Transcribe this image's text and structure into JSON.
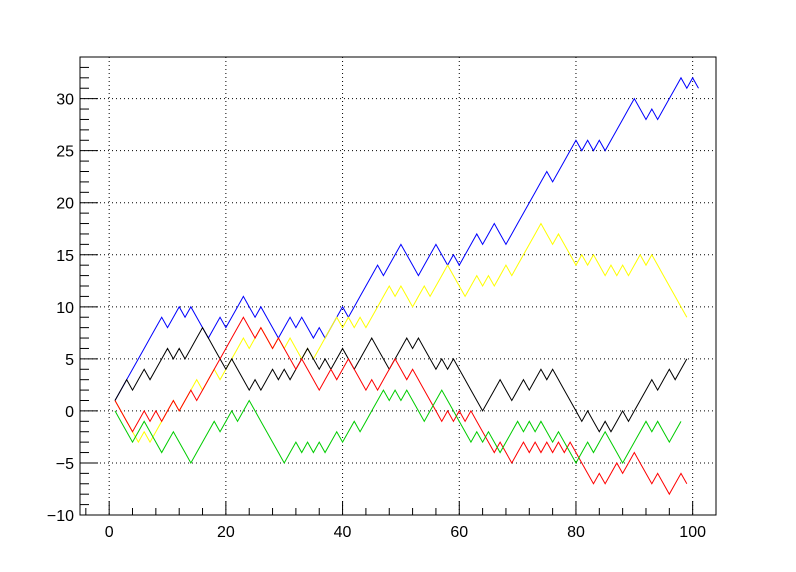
{
  "chart_data": {
    "type": "line",
    "title": "",
    "xlabel": "",
    "ylabel": "",
    "xlim": [
      -5,
      104
    ],
    "ylim": [
      -10,
      34
    ],
    "grid": true,
    "legend": "none",
    "x_ticks": [
      0,
      20,
      40,
      60,
      80,
      100
    ],
    "y_ticks": [
      -10,
      -5,
      0,
      5,
      10,
      15,
      20,
      25,
      30
    ],
    "series": [
      {
        "color": "#0000ff",
        "start_x": 1,
        "values": [
          1,
          2,
          3,
          4,
          5,
          6,
          7,
          8,
          9,
          8,
          9,
          10,
          9,
          10,
          9,
          8,
          7,
          8,
          9,
          8,
          9,
          10,
          11,
          10,
          9,
          10,
          9,
          8,
          7,
          8,
          9,
          8,
          9,
          8,
          7,
          8,
          7,
          8,
          9,
          10,
          9,
          10,
          11,
          12,
          13,
          14,
          13,
          14,
          15,
          16,
          15,
          14,
          13,
          14,
          15,
          16,
          15,
          14,
          15,
          14,
          15,
          16,
          17,
          16,
          17,
          18,
          17,
          16,
          17,
          18,
          19,
          20,
          21,
          22,
          23,
          22,
          23,
          24,
          25,
          26,
          25,
          26,
          25,
          26,
          25,
          26,
          27,
          28,
          29,
          30,
          29,
          28,
          29,
          28,
          29,
          30,
          31,
          32,
          31,
          32,
          31
        ]
      },
      {
        "color": "#ffff00",
        "start_x": 1,
        "values": [
          1,
          0,
          -1,
          -2,
          -3,
          -2,
          -3,
          -2,
          -1,
          0,
          1,
          0,
          1,
          2,
          3,
          2,
          3,
          4,
          3,
          4,
          5,
          6,
          7,
          6,
          7,
          8,
          7,
          6,
          7,
          6,
          7,
          6,
          5,
          6,
          5,
          6,
          7,
          8,
          9,
          8,
          9,
          8,
          9,
          8,
          9,
          10,
          11,
          12,
          11,
          12,
          11,
          10,
          11,
          12,
          11,
          12,
          13,
          14,
          13,
          12,
          11,
          12,
          13,
          12,
          13,
          12,
          13,
          14,
          13,
          14,
          15,
          16,
          17,
          18,
          17,
          16,
          17,
          16,
          15,
          14,
          15,
          14,
          15,
          14,
          13,
          14,
          13,
          14,
          13,
          14,
          15,
          14,
          15,
          14,
          13,
          12,
          11,
          10,
          9
        ]
      },
      {
        "color": "#000000",
        "start_x": 1,
        "values": [
          1,
          2,
          3,
          2,
          3,
          4,
          3,
          4,
          5,
          6,
          5,
          6,
          5,
          6,
          7,
          8,
          7,
          6,
          5,
          4,
          5,
          4,
          3,
          2,
          3,
          2,
          3,
          4,
          3,
          4,
          3,
          4,
          5,
          6,
          5,
          4,
          5,
          4,
          5,
          6,
          5,
          4,
          5,
          6,
          7,
          6,
          5,
          4,
          5,
          6,
          7,
          6,
          7,
          6,
          5,
          4,
          5,
          4,
          5,
          4,
          3,
          2,
          1,
          0,
          1,
          2,
          3,
          2,
          1,
          2,
          3,
          2,
          3,
          4,
          3,
          4,
          3,
          2,
          1,
          0,
          -1,
          0,
          -1,
          -2,
          -1,
          -2,
          -1,
          0,
          -1,
          0,
          1,
          2,
          3,
          2,
          3,
          4,
          3,
          4,
          5
        ]
      },
      {
        "color": "#ff0000",
        "start_x": 1,
        "values": [
          1,
          0,
          -1,
          -2,
          -1,
          0,
          -1,
          0,
          -1,
          0,
          1,
          0,
          1,
          2,
          1,
          2,
          3,
          4,
          5,
          6,
          7,
          8,
          9,
          8,
          7,
          8,
          7,
          6,
          7,
          6,
          5,
          4,
          5,
          4,
          3,
          2,
          3,
          4,
          3,
          4,
          5,
          4,
          3,
          2,
          3,
          2,
          3,
          4,
          5,
          4,
          3,
          4,
          3,
          2,
          1,
          0,
          -1,
          0,
          -1,
          0,
          -1,
          0,
          -1,
          -2,
          -3,
          -4,
          -3,
          -4,
          -5,
          -4,
          -3,
          -4,
          -3,
          -4,
          -3,
          -4,
          -3,
          -4,
          -3,
          -4,
          -5,
          -6,
          -7,
          -6,
          -7,
          -6,
          -5,
          -6,
          -5,
          -4,
          -5,
          -6,
          -7,
          -6,
          -7,
          -8,
          -7,
          -6,
          -7
        ]
      },
      {
        "color": "#00cc00",
        "start_x": 1,
        "values": [
          0,
          -1,
          -2,
          -3,
          -2,
          -1,
          -2,
          -3,
          -4,
          -3,
          -2,
          -3,
          -4,
          -5,
          -4,
          -3,
          -2,
          -1,
          -2,
          -1,
          0,
          -1,
          0,
          1,
          0,
          -1,
          -2,
          -3,
          -4,
          -5,
          -4,
          -3,
          -4,
          -3,
          -4,
          -3,
          -4,
          -3,
          -2,
          -3,
          -2,
          -1,
          -2,
          -1,
          0,
          1,
          2,
          1,
          2,
          1,
          2,
          1,
          0,
          -1,
          0,
          1,
          2,
          1,
          0,
          -1,
          -2,
          -3,
          -2,
          -3,
          -2,
          -3,
          -4,
          -3,
          -2,
          -1,
          -2,
          -1,
          -2,
          -1,
          -2,
          -3,
          -2,
          -3,
          -4,
          -5,
          -4,
          -3,
          -4,
          -3,
          -2,
          -3,
          -4,
          -5,
          -4,
          -3,
          -2,
          -1,
          -2,
          -1,
          -2,
          -3,
          -2,
          -1
        ]
      }
    ]
  }
}
